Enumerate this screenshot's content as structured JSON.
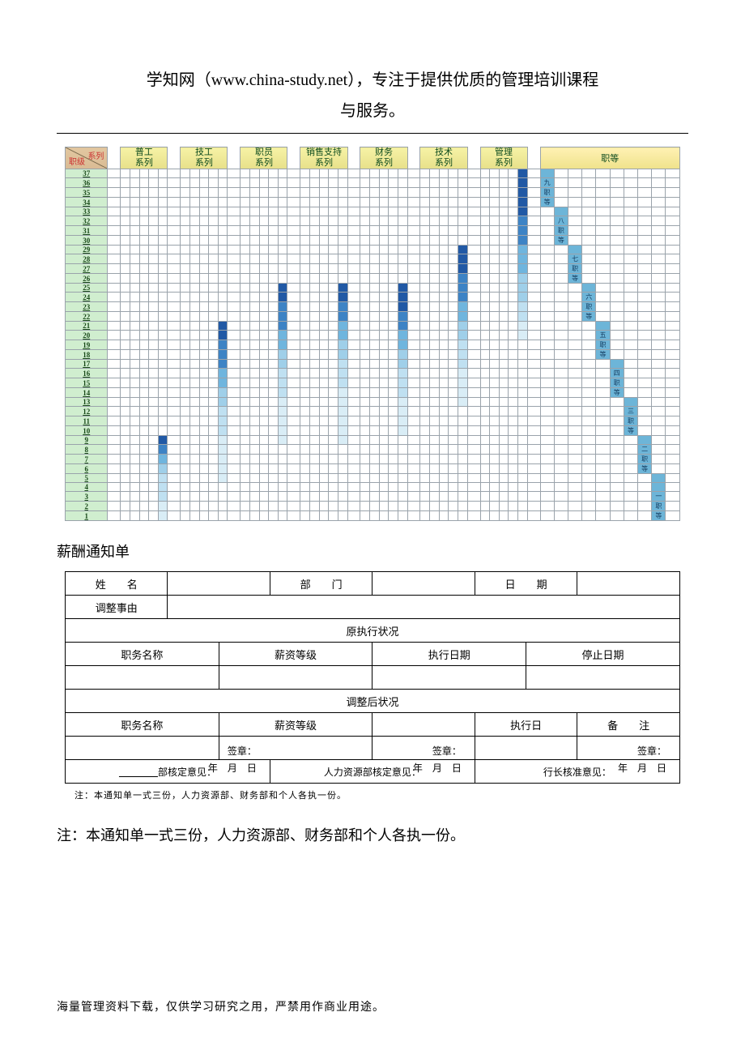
{
  "title_line1": "学知网（www.china-study.net），专注于提供优质的管理培训课程",
  "title_line2": "与服务。",
  "chart": {
    "corner_top_right": "系列",
    "corner_bottom_left": "职级",
    "series_headers": [
      "普工\n系列",
      "技工\n系列",
      "职员\n系列",
      "销售支持\n系列",
      "财务\n系列",
      "技术\n系列",
      "管理\n系列"
    ],
    "rank_header": "职等",
    "row_labels": [
      37,
      36,
      35,
      34,
      33,
      32,
      31,
      30,
      29,
      28,
      27,
      26,
      25,
      24,
      23,
      22,
      21,
      20,
      19,
      18,
      17,
      16,
      15,
      14,
      13,
      12,
      11,
      10,
      9,
      8,
      7,
      6,
      5,
      4,
      3,
      2,
      1
    ],
    "cols_per_series": 5,
    "rank_cols": 10,
    "rank_labels": [
      "九职等",
      "八职等",
      "七职等",
      "六职等",
      "五职等",
      "四职等",
      "三职等",
      "二职等",
      "一职等"
    ],
    "colors": {
      "grid_border": "#9aa3ab",
      "levels": [
        "#d9edf6",
        "#bfe0f1",
        "#9fcfe9",
        "#6fb5de",
        "#3d83c5",
        "#2159a5"
      ],
      "header_series_bg_top": "#f6f2a5",
      "header_series_bg_bot": "#e7e08a",
      "header_series_text": "#0c4a1d",
      "header_corner_bg_top": "#e2c7a0",
      "header_corner_bg_bot": "#d9bb94",
      "header_corner_text": "#c33",
      "rownum_bg": "#d0eecf",
      "rownum_text": "#194a19",
      "rank_cell_fill": "#6db5d8"
    },
    "series_columns": [
      {
        "cells": {
          "9": 5,
          "8": 4,
          "7": 3,
          "6": 2,
          "5": 1,
          "4": 1,
          "3": 1,
          "2": 0,
          "1": 0
        }
      },
      {
        "cells": {
          "21": 5,
          "20": 5,
          "19": 4,
          "18": 4,
          "17": 4,
          "16": 3,
          "15": 3,
          "14": 2,
          "13": 2,
          "12": 1,
          "11": 1,
          "10": 1,
          "9": 0,
          "8": 0,
          "7": 0,
          "6": 0,
          "5": 0
        }
      },
      {
        "cells": {
          "25": 5,
          "24": 5,
          "23": 4,
          "22": 4,
          "21": 4,
          "20": 3,
          "19": 3,
          "18": 2,
          "17": 2,
          "16": 1,
          "15": 1,
          "14": 1,
          "13": 0,
          "12": 0,
          "11": 0,
          "10": 0,
          "9": 0
        }
      },
      {
        "cells": {
          "25": 5,
          "24": 5,
          "23": 4,
          "22": 4,
          "21": 3,
          "20": 3,
          "19": 2,
          "18": 2,
          "17": 1,
          "16": 1,
          "15": 1,
          "14": 0,
          "13": 0,
          "12": 0,
          "11": 0,
          "10": 0,
          "9": 0
        }
      },
      {
        "cells": {
          "25": 5,
          "24": 5,
          "23": 5,
          "22": 4,
          "21": 4,
          "20": 3,
          "19": 3,
          "18": 2,
          "17": 2,
          "16": 1,
          "15": 1,
          "14": 1,
          "13": 0,
          "12": 0,
          "11": 0,
          "10": 0
        }
      },
      {
        "cells": {
          "29": 5,
          "28": 5,
          "27": 5,
          "26": 4,
          "25": 4,
          "24": 4,
          "23": 3,
          "22": 3,
          "21": 2,
          "20": 2,
          "19": 1,
          "18": 1,
          "17": 1,
          "16": 0,
          "15": 0,
          "14": 0,
          "13": 0
        }
      },
      {
        "cells": {
          "37": 5,
          "36": 5,
          "35": 5,
          "34": 5,
          "33": 5,
          "32": 4,
          "31": 4,
          "30": 4,
          "29": 3,
          "28": 3,
          "27": 3,
          "26": 2,
          "25": 2,
          "24": 2,
          "23": 1,
          "22": 1,
          "21": 0,
          "20": 0
        }
      }
    ],
    "rank_column": {
      "37": 0,
      "36": 0,
      "35": 0,
      "34": 0,
      "33": 1,
      "32": 1,
      "31": 1,
      "30": 1,
      "29": 2,
      "28": 2,
      "27": 2,
      "26": 2,
      "25": 3,
      "24": 3,
      "23": 3,
      "22": 3,
      "21": 4,
      "20": 4,
      "19": 4,
      "18": 4,
      "17": 5,
      "16": 5,
      "15": 5,
      "14": 5,
      "13": 6,
      "12": 6,
      "11": 6,
      "10": 6,
      "9": 7,
      "8": 7,
      "7": 7,
      "6": 7,
      "5": 8,
      "4": 8,
      "3": 8,
      "2": 8,
      "1": 8
    },
    "rank_label_cells": {
      "36": "九",
      "35": "职",
      "34": "等",
      "32": "八",
      "31": "职",
      "30": "等",
      "28": "七",
      "27": "职",
      "26": "等",
      "24": "六",
      "23": "职",
      "22": "等",
      "20": "五",
      "19": "职",
      "18": "等",
      "16": "四",
      "15": "职",
      "14": "等",
      "12": "三",
      "11": "职",
      "10": "等",
      "8": "二",
      "7": "职",
      "6": "等",
      "3": "一",
      "2": "职",
      "1": "等"
    }
  },
  "section_title": "薪酬通知单",
  "form": {
    "labels": {
      "name": "姓　　名",
      "dept": "部　　门",
      "date": "日　　期",
      "reason": "调整事由",
      "orig_header": "原执行状况",
      "job_title": "职务名称",
      "salary_grade": "薪资等级",
      "exec_date": "执行日期",
      "stop_date": "停止日期",
      "adj_header": "调整后状况",
      "exec_day": "执行日",
      "remark": "备　　注",
      "approval_dept": "部核定意见：",
      "approval_hr": "人力资源部核定意见：",
      "approval_head": "行长核准意见：",
      "sign": "签章：",
      "ymd": "年　月　日"
    }
  },
  "small_note": "注：本通知单一式三份，人力资源部、财务部和个人各执一份。",
  "big_note": "注：本通知单一式三份，人力资源部、财务部和个人各执一份。",
  "footer_note": "海量管理资料下载，仅供学习研究之用，严禁用作商业用途。"
}
